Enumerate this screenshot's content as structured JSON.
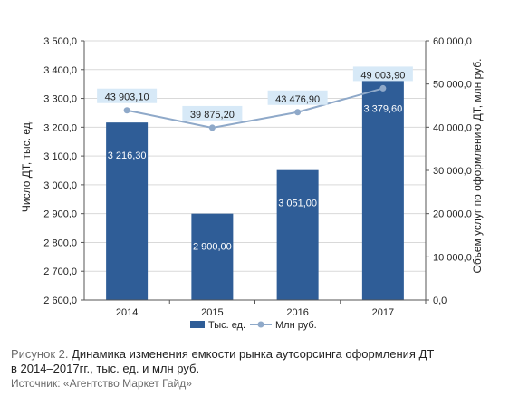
{
  "chart_data": {
    "type": "bar",
    "categories": [
      "2014",
      "2015",
      "2016",
      "2017"
    ],
    "series": [
      {
        "name": "Тыс. ед.",
        "type": "bar",
        "axis": "left",
        "values": [
          3216.3,
          2900.0,
          3051.0,
          3379.6
        ],
        "labels": [
          "3 216,30",
          "2 900,00",
          "3 051,00",
          "3 379,60"
        ]
      },
      {
        "name": "Млн руб.",
        "type": "line",
        "axis": "right",
        "values": [
          43903.1,
          39875.2,
          43476.9,
          49003.9
        ],
        "labels": [
          "43 903,10",
          "39 875,20",
          "43 476,90",
          "49 003,90"
        ]
      }
    ],
    "ylabel": "Число ДТ, тыс. ед.",
    "y2label": "Объем услуг по оформлению ДТ, млн руб.",
    "ylim": [
      2600,
      3500
    ],
    "y2lim": [
      0,
      60000
    ],
    "yticks": [
      "2 600,0",
      "2 700,0",
      "2 800,0",
      "2 900,0",
      "3 000,0",
      "3 100,0",
      "3 200,0",
      "3 300,0",
      "3 400,0",
      "3 500,0"
    ],
    "y2ticks": [
      "0,0",
      "10 000,0",
      "20 000,0",
      "30 000,0",
      "40 000,0",
      "50 000,0",
      "60 000,0"
    ],
    "grid": true,
    "legend_position": "bottom",
    "colors": {
      "bar": "#2f5d97",
      "line": "#8fa9c9",
      "line_label_bg": "#d7e9f7",
      "grid": "#d9d9d9"
    }
  },
  "caption": {
    "figure_label": "Рисунок 2.",
    "text_line1": "Динамика изменения емкости рынка аутсорсинга оформления ДТ",
    "text_line2": "в 2014–2017гг., тыс. ед. и млн руб.",
    "source": "Источник: «Агентство Маркет Гайд»"
  }
}
